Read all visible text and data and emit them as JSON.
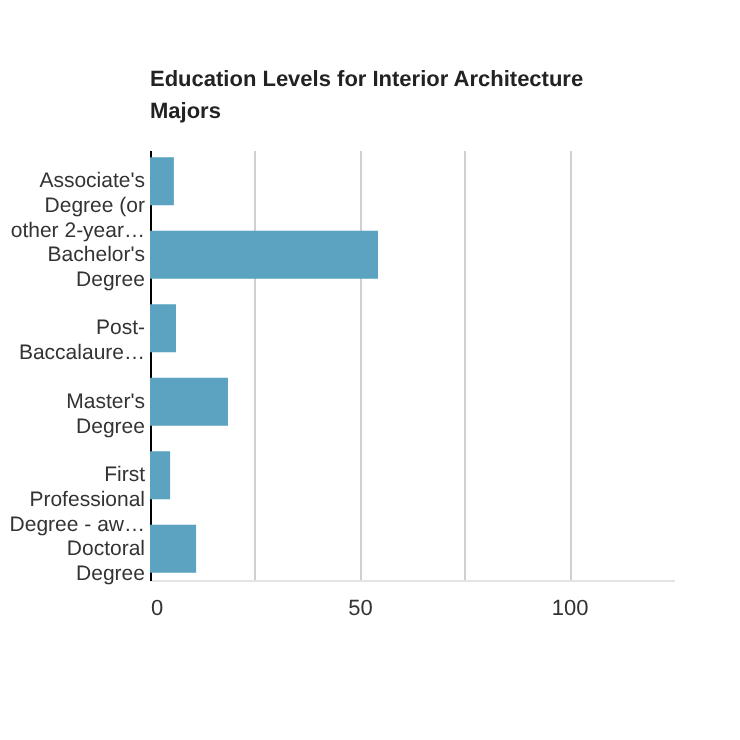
{
  "chart_data": {
    "type": "bar",
    "orientation": "horizontal",
    "title": "Education Levels for Interior Architecture Majors",
    "categories": [
      "Associate's Degree (or other 2-year…",
      "Bachelor's Degree",
      "Post-Baccalaure…",
      "Master's Degree",
      "First Professional Degree - aw…",
      "Doctoral Degree"
    ],
    "values": [
      5.7,
      54.4,
      6.2,
      18.6,
      4.8,
      11.0
    ],
    "color": "#5ba3c0",
    "xlim": [
      0,
      125
    ],
    "xticks": [
      0,
      {
        "value": 25,
        "label": null
      },
      50,
      {
        "value": 75,
        "label": null
      },
      100
    ],
    "grid": "x"
  }
}
